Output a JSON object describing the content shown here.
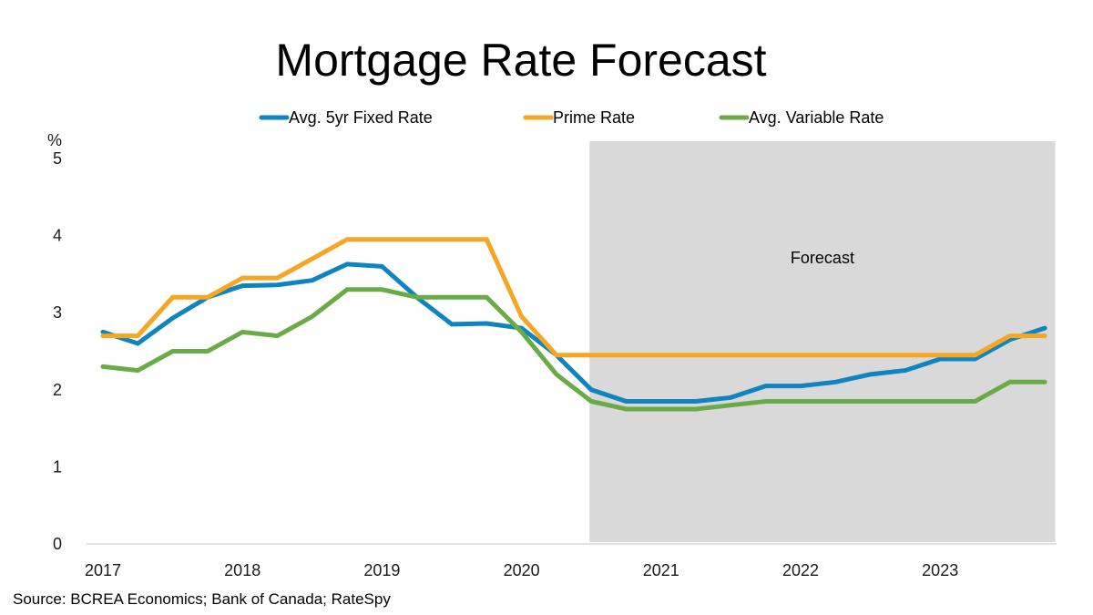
{
  "chart_data": {
    "type": "line",
    "title": "Mortgage Rate Forecast",
    "xlabel": "",
    "ylabel": "%",
    "ylim": [
      0,
      5
    ],
    "yticks": [
      "0",
      "1",
      "2",
      "3",
      "4",
      "5"
    ],
    "x_tick_labels": [
      "2017",
      "2018",
      "2019",
      "2020",
      "2021",
      "2022",
      "2023"
    ],
    "x": [
      "2017Q1",
      "2017Q2",
      "2017Q3",
      "2017Q4",
      "2018Q1",
      "2018Q2",
      "2018Q3",
      "2018Q4",
      "2019Q1",
      "2019Q2",
      "2019Q3",
      "2019Q4",
      "2020Q1",
      "2020Q2",
      "2020Q3",
      "2020Q4",
      "2021Q1",
      "2021Q2",
      "2021Q3",
      "2021Q4",
      "2022Q1",
      "2022Q2",
      "2022Q3",
      "2022Q4",
      "2023Q1",
      "2023Q2",
      "2023Q3",
      "2023Q4"
    ],
    "grid": false,
    "legend_position": "top",
    "series": [
      {
        "name": "Avg. 5yr Fixed Rate",
        "color": "#0E84C0",
        "values": [
          2.75,
          2.6,
          2.93,
          3.2,
          3.35,
          3.36,
          3.42,
          3.63,
          3.6,
          3.2,
          2.85,
          2.86,
          2.8,
          2.45,
          2.0,
          1.85,
          1.85,
          1.85,
          1.9,
          2.05,
          2.05,
          2.1,
          2.2,
          2.25,
          2.4,
          2.4,
          2.65,
          2.8
        ]
      },
      {
        "name": "Prime Rate",
        "color": "#F5A623",
        "values": [
          2.7,
          2.7,
          3.2,
          3.2,
          3.45,
          3.45,
          3.7,
          3.95,
          3.95,
          3.95,
          3.95,
          3.95,
          2.95,
          2.45,
          2.45,
          2.45,
          2.45,
          2.45,
          2.45,
          2.45,
          2.45,
          2.45,
          2.45,
          2.45,
          2.45,
          2.45,
          2.7,
          2.7
        ]
      },
      {
        "name": "Avg. Variable Rate",
        "color": "#6AAB47",
        "values": [
          2.3,
          2.25,
          2.5,
          2.5,
          2.75,
          2.7,
          2.95,
          3.3,
          3.3,
          3.2,
          3.2,
          3.2,
          2.75,
          2.2,
          1.85,
          1.75,
          1.75,
          1.75,
          1.8,
          1.85,
          1.85,
          1.85,
          1.85,
          1.85,
          1.85,
          1.85,
          2.1,
          2.1
        ]
      }
    ],
    "forecast_region": {
      "label": "Forecast",
      "start": "2020Q4",
      "end": "2023Q4",
      "color": "#D9D9D9"
    },
    "source": "Source: BCREA Economics; Bank of Canada; RateSpy"
  }
}
